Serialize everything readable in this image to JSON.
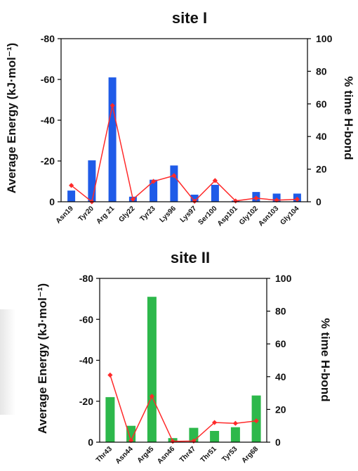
{
  "colors": {
    "energy_bar_site1": "#1f5be8",
    "energy_bar_site2": "#2db84b",
    "hbond_line": "#ff2a2a",
    "axis": "#000000"
  },
  "chart_data": [
    {
      "type": "bar",
      "title": "site I",
      "ylabel": "Average Energy (kJ·mol⁻¹)",
      "y2label": "% time H-bond",
      "ylim": [
        0,
        -80
      ],
      "y_ticks": [
        "-80",
        "-60",
        "-40",
        "-20",
        "0"
      ],
      "y2lim": [
        0,
        100
      ],
      "y2_ticks": [
        "100",
        "80",
        "60",
        "40",
        "20",
        "0"
      ],
      "categories": [
        "Asn19",
        "Tyr20",
        "Arg 21",
        "Gly22",
        "Tyr23",
        "Lys96",
        "Lys97",
        "Ser100",
        "Asp101",
        "Gly102",
        "Asn103",
        "Gly104"
      ],
      "series": [
        {
          "kind": "bar",
          "axis": "left",
          "values": [
            -5.5,
            -20.3,
            -61,
            -2.5,
            -10.8,
            -17.8,
            -3.5,
            -8.3,
            -0.6,
            -4.8,
            -4,
            -4
          ]
        },
        {
          "kind": "line",
          "axis": "right",
          "values": [
            10,
            0,
            59,
            1.5,
            12.5,
            16,
            0.3,
            13,
            0.5,
            2.2,
            1,
            1.5
          ]
        }
      ],
      "grid": false
    },
    {
      "type": "bar",
      "title": "site II",
      "ylabel": "Average Energy (kJ·mol⁻¹)",
      "y2label": "% time H-bond",
      "ylim": [
        0,
        -80
      ],
      "y_ticks": [
        "-80",
        "-60",
        "-40",
        "-20",
        "0"
      ],
      "y2lim": [
        0,
        100
      ],
      "y2_ticks": [
        "100",
        "80",
        "60",
        "40",
        "20",
        "0"
      ],
      "categories": [
        "Thr43",
        "Asn44",
        "Arg45",
        "Asn46",
        "Thr47",
        "Thr51",
        "Tyr53",
        "Arg68"
      ],
      "series": [
        {
          "kind": "bar",
          "axis": "left",
          "values": [
            -22,
            -8,
            -71,
            -2,
            -7,
            -5.5,
            -7.3,
            -22.8
          ]
        },
        {
          "kind": "line",
          "axis": "right",
          "values": [
            41,
            1,
            28,
            0.5,
            0.7,
            12,
            11.5,
            13
          ]
        }
      ],
      "grid": false
    }
  ]
}
